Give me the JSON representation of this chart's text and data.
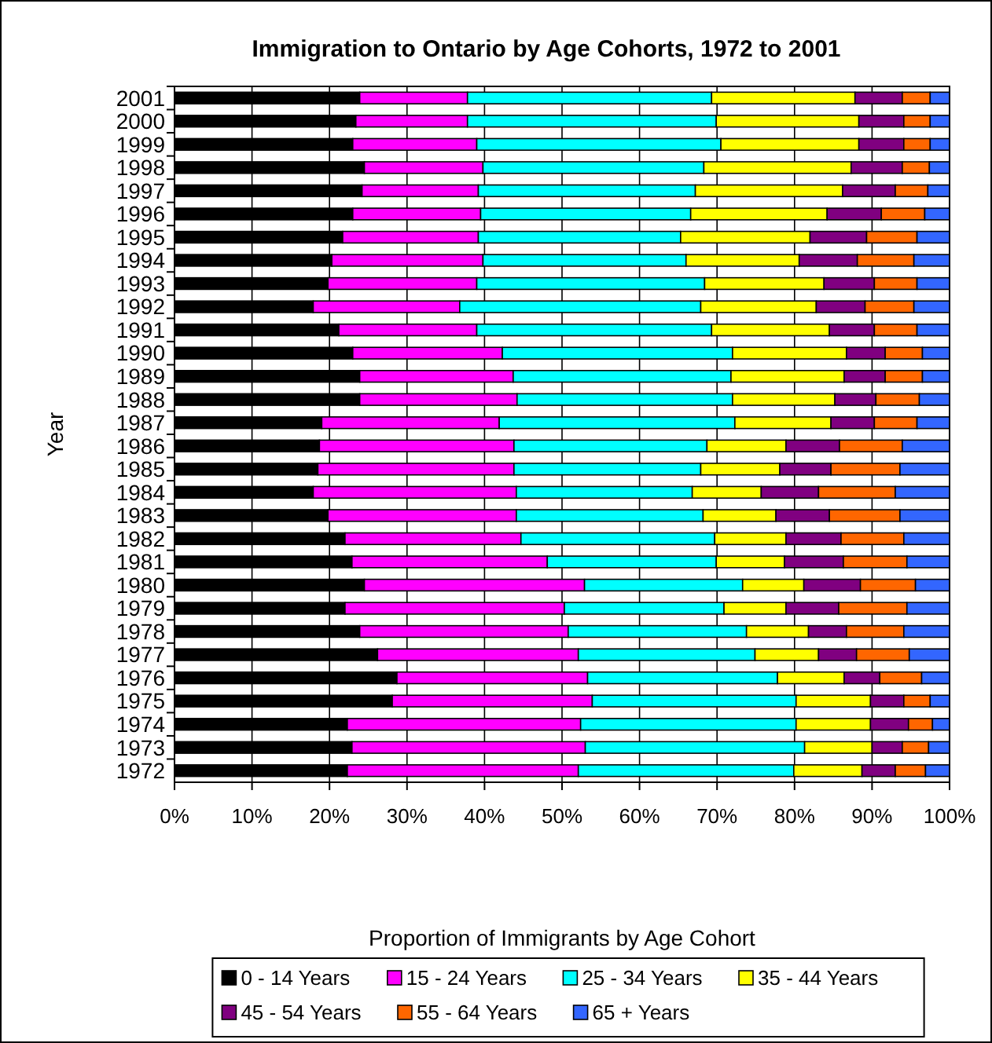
{
  "chart_data": {
    "type": "bar",
    "orientation": "horizontal",
    "stacked": true,
    "title": "Immigration to Ontario by Age Cohorts, 1972 to 2001",
    "xlabel": "Proportion of Immigrants by Age Cohort",
    "ylabel": "Year",
    "categories": [
      "2001",
      "2000",
      "1999",
      "1998",
      "1997",
      "1996",
      "1995",
      "1994",
      "1993",
      "1992",
      "1991",
      "1990",
      "1989",
      "1988",
      "1987",
      "1986",
      "1985",
      "1984",
      "1983",
      "1982",
      "1981",
      "1980",
      "1979",
      "1978",
      "1977",
      "1976",
      "1975",
      "1974",
      "1973",
      "1972"
    ],
    "series": [
      {
        "name": "0 - 14 Years",
        "color": "#000000",
        "values": [
          23.9,
          23.4,
          23.0,
          24.5,
          24.2,
          23.0,
          21.7,
          20.3,
          19.8,
          17.9,
          21.2,
          23.0,
          23.9,
          23.9,
          19.0,
          18.7,
          18.5,
          17.9,
          19.8,
          22.0,
          22.9,
          24.5,
          22.0,
          23.9,
          26.2,
          28.7,
          28.1,
          22.3,
          22.9,
          22.3
        ]
      },
      {
        "name": "15 - 24 Years",
        "color": "#ff00ff",
        "values": [
          13.9,
          14.4,
          16.0,
          15.3,
          15.0,
          16.5,
          17.5,
          19.5,
          19.2,
          18.9,
          17.8,
          19.3,
          19.8,
          20.3,
          22.9,
          25.1,
          25.3,
          26.2,
          24.3,
          22.7,
          25.2,
          28.4,
          28.3,
          26.9,
          25.9,
          24.6,
          25.8,
          30.1,
          30.1,
          29.8
        ]
      },
      {
        "name": "25 - 34 Years",
        "color": "#00ffff",
        "values": [
          31.5,
          32.1,
          31.5,
          28.5,
          28.0,
          27.1,
          26.1,
          26.2,
          29.4,
          31.1,
          30.3,
          29.7,
          28.1,
          27.8,
          30.4,
          24.9,
          24.1,
          22.7,
          24.1,
          25.0,
          21.8,
          20.4,
          20.6,
          23.0,
          22.8,
          24.5,
          26.3,
          27.8,
          28.3,
          27.8
        ]
      },
      {
        "name": "35 - 44 Years",
        "color": "#ffff00",
        "values": [
          18.5,
          18.4,
          17.8,
          19.0,
          19.0,
          17.6,
          16.7,
          14.6,
          15.4,
          14.9,
          15.2,
          14.7,
          14.6,
          13.2,
          12.4,
          10.2,
          10.2,
          8.9,
          9.4,
          9.2,
          8.8,
          7.9,
          8.0,
          8.0,
          8.2,
          8.6,
          9.6,
          9.6,
          8.7,
          8.8
        ]
      },
      {
        "name": "45 - 54 Years",
        "color": "#800080",
        "values": [
          6.1,
          5.8,
          5.8,
          6.6,
          6.8,
          7.0,
          7.3,
          7.5,
          6.5,
          6.3,
          5.8,
          5.0,
          5.3,
          5.3,
          5.6,
          6.9,
          6.6,
          7.4,
          6.9,
          7.1,
          7.6,
          7.3,
          6.8,
          4.9,
          4.9,
          4.6,
          4.3,
          4.9,
          3.9,
          4.3
        ]
      },
      {
        "name": "55 - 64 Years",
        "color": "#ff6600",
        "values": [
          3.6,
          3.4,
          3.4,
          3.5,
          4.2,
          5.6,
          6.5,
          7.3,
          5.5,
          6.3,
          5.5,
          4.8,
          4.8,
          5.6,
          5.5,
          8.1,
          8.9,
          9.9,
          9.1,
          8.1,
          8.2,
          7.1,
          8.8,
          7.4,
          6.8,
          5.4,
          3.4,
          3.1,
          3.4,
          3.9
        ]
      },
      {
        "name": "65 + Years",
        "color": "#3366ff",
        "values": [
          2.5,
          2.5,
          2.5,
          2.6,
          2.8,
          3.2,
          4.2,
          4.6,
          4.2,
          4.6,
          4.2,
          3.5,
          3.5,
          3.9,
          4.2,
          6.1,
          6.4,
          7.0,
          6.4,
          5.9,
          5.5,
          4.4,
          5.5,
          5.9,
          5.2,
          3.6,
          2.5,
          2.2,
          2.7,
          3.1
        ]
      }
    ],
    "xlim": [
      0,
      100
    ],
    "xticks": [
      {
        "value": 0,
        "label": "0%"
      },
      {
        "value": 10,
        "label": "10%"
      },
      {
        "value": 20,
        "label": "20%"
      },
      {
        "value": 30,
        "label": "30%"
      },
      {
        "value": 40,
        "label": "40%"
      },
      {
        "value": 50,
        "label": "50%"
      },
      {
        "value": 60,
        "label": "60%"
      },
      {
        "value": 70,
        "label": "70%"
      },
      {
        "value": 80,
        "label": "80%"
      },
      {
        "value": 90,
        "label": "90%"
      },
      {
        "value": 100,
        "label": "100%"
      }
    ],
    "grid": "x",
    "legend": "bottom"
  }
}
